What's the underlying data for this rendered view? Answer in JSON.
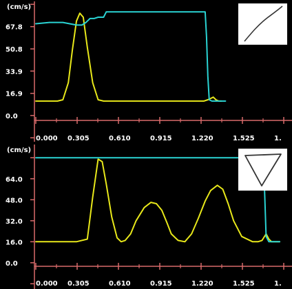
{
  "colors": {
    "background": "#000000",
    "axis": "#d96b6b",
    "text": "#ffffff",
    "velocity_trace": "#e8e81a",
    "gate_trace": "#2ad4d4",
    "thumbnail_background": "#ffffff",
    "thumbnail_stroke": "#333333"
  },
  "chart_data": [
    {
      "type": "line",
      "title": "",
      "xlabel": "",
      "ylabel": "(cm/s)",
      "x_ticks": [
        "0.000",
        "0.305",
        "0.610",
        "0.915",
        "1.220",
        "1.525",
        "1."
      ],
      "xlim": [
        0,
        1.83
      ],
      "y_ticks": [
        "67.8",
        "50.8",
        "33.9",
        "16.9",
        "0.0"
      ],
      "y_tick_values": [
        67.8,
        50.8,
        33.9,
        16.9,
        0
      ],
      "ylim": [
        -20,
        86
      ],
      "grid": false,
      "thumbnail_icon": "diagonal-stroke-icon",
      "series": [
        {
          "color": "#e8e81a",
          "x": [
            0,
            0.08,
            0.16,
            0.2,
            0.24,
            0.27,
            0.3,
            0.325,
            0.35,
            0.38,
            0.42,
            0.46,
            0.5,
            0.54,
            0.6,
            0.8,
            1.0,
            1.2,
            1.24,
            1.27,
            1.29,
            1.31,
            1.33,
            1.35,
            1.37
          ],
          "y": [
            11,
            11,
            11,
            12,
            25,
            50,
            72,
            78,
            75,
            52,
            25,
            12,
            11,
            11,
            11,
            11,
            11,
            11,
            11,
            12,
            13,
            14,
            12,
            11,
            11
          ]
        },
        {
          "color": "#2ad4d4",
          "x": [
            0,
            0.1,
            0.2,
            0.3,
            0.34,
            0.37,
            0.4,
            0.43,
            0.46,
            0.5,
            0.52,
            0.55,
            0.7,
            1.0,
            1.25,
            1.26,
            1.27,
            1.28,
            1.3,
            1.4
          ],
          "y": [
            70,
            71,
            71,
            69,
            69,
            71,
            74,
            74,
            75,
            75,
            79,
            79,
            79,
            79,
            79,
            60,
            30,
            12,
            11,
            11
          ]
        }
      ]
    },
    {
      "type": "line",
      "title": "",
      "xlabel": "",
      "ylabel": "(cm/s)",
      "x_ticks": [
        "0.000",
        "0.305",
        "0.610",
        "0.915",
        "1.220",
        "1.525",
        "1."
      ],
      "xlim": [
        0,
        1.83
      ],
      "y_ticks": [
        "64.0",
        "48.0",
        "32.0",
        "16.0",
        "0.0"
      ],
      "y_tick_values": [
        64,
        48,
        32,
        16,
        0
      ],
      "ylim": [
        -20,
        88
      ],
      "grid": false,
      "thumbnail_icon": "inverted-triangle-icon",
      "series": [
        {
          "color": "#e8e81a",
          "x": [
            0,
            0.3,
            0.38,
            0.42,
            0.46,
            0.49,
            0.52,
            0.56,
            0.6,
            0.63,
            0.66,
            0.7,
            0.74,
            0.8,
            0.85,
            0.89,
            0.93,
            0.97,
            1.0,
            1.05,
            1.1,
            1.15,
            1.2,
            1.25,
            1.29,
            1.34,
            1.38,
            1.42,
            1.46,
            1.52,
            1.6,
            1.64,
            1.67,
            1.7,
            1.72,
            1.74,
            1.8
          ],
          "y": [
            16,
            16,
            18,
            50,
            79,
            77,
            60,
            35,
            19,
            16,
            17,
            22,
            32,
            42,
            46,
            45,
            40,
            30,
            22,
            17,
            16,
            22,
            34,
            47,
            55,
            59,
            56,
            45,
            32,
            20,
            16,
            16,
            17,
            22,
            18,
            16,
            16
          ]
        },
        {
          "color": "#2ad4d4",
          "x": [
            0,
            1.0,
            1.6,
            1.68,
            1.69,
            1.7,
            1.72,
            1.8
          ],
          "y": [
            80,
            80,
            80,
            80,
            50,
            20,
            16,
            16
          ]
        }
      ]
    }
  ]
}
